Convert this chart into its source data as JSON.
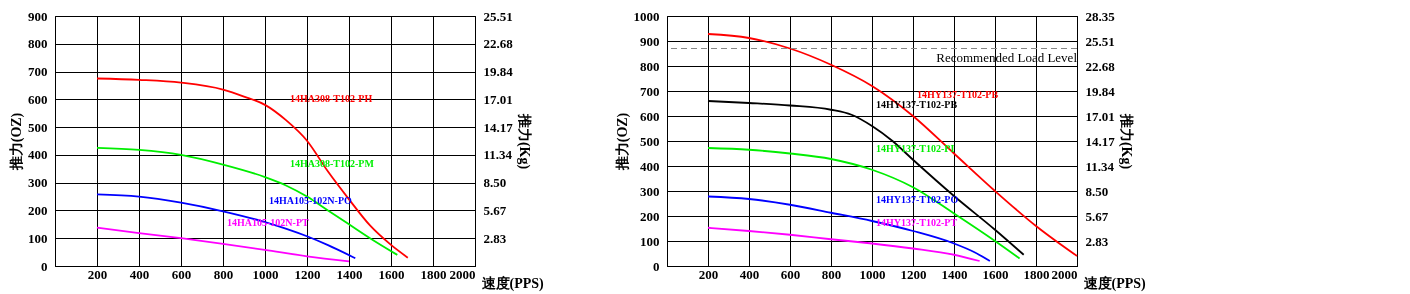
{
  "chart_data": [
    {
      "type": "line",
      "xlabel": "速度(PPS)",
      "ylabel": "推力(OZ)",
      "y2label": "推力(Kg)",
      "xlim": [
        0,
        2000
      ],
      "xticks": [
        200,
        400,
        600,
        800,
        1000,
        1200,
        1400,
        1600,
        1800,
        2000
      ],
      "ylim": [
        0,
        900
      ],
      "yticks": [
        0,
        100,
        200,
        300,
        400,
        500,
        600,
        700,
        800,
        900
      ],
      "y2lim": [
        0,
        25.51
      ],
      "y2ticks": [
        2.83,
        5.67,
        {
          "value": 8.5,
          "label": "8.50"
        },
        11.34,
        14.17,
        17.01,
        19.84,
        22.68,
        25.51
      ],
      "grid": true,
      "line_style": "solid",
      "series": [
        {
          "name": "14HA308-T102-PH",
          "color": "#ff0000",
          "x": [
            200,
            400,
            600,
            800,
            900,
            1000,
            1100,
            1200,
            1300,
            1400,
            1500,
            1600,
            1680
          ],
          "values": [
            675,
            670,
            660,
            635,
            610,
            580,
            525,
            451,
            340,
            240,
            146,
            76,
            30
          ]
        },
        {
          "name": "14HA308-T102-PM",
          "color": "#00ee00",
          "x": [
            200,
            400,
            600,
            800,
            1000,
            1100,
            1200,
            1300,
            1400,
            1500,
            1630
          ],
          "values": [
            425,
            418,
            400,
            365,
            320,
            290,
            250,
            200,
            150,
            100,
            40
          ]
        },
        {
          "name": "14HA105-102N-PO",
          "color": "#0000ff",
          "x": [
            200,
            400,
            600,
            800,
            1000,
            1200,
            1300,
            1430
          ],
          "values": [
            258,
            250,
            228,
            197,
            158,
            107,
            75,
            28
          ]
        },
        {
          "name": "14HA105-102N-PT",
          "color": "#ff00ff",
          "x": [
            200,
            400,
            600,
            800,
            1000,
            1200,
            1400
          ],
          "values": [
            138,
            118,
            100,
            80,
            58,
            35,
            17
          ]
        }
      ]
    },
    {
      "type": "line",
      "xlabel": "速度(PPS)",
      "ylabel": "推力(OZ)",
      "y2label": "推力(Kg)",
      "xlim": [
        0,
        2000
      ],
      "xticks": [
        200,
        400,
        600,
        800,
        1000,
        1200,
        1400,
        1600,
        1800,
        2000
      ],
      "ylim": [
        0,
        1000
      ],
      "yticks": [
        0,
        100,
        200,
        300,
        400,
        500,
        600,
        700,
        800,
        900,
        1000
      ],
      "y2lim": [
        0,
        28.35
      ],
      "y2ticks": [
        2.83,
        5.67,
        {
          "value": 8.5,
          "label": "8.50"
        },
        11.34,
        14.17,
        17.01,
        19.84,
        22.68,
        25.51,
        28.35
      ],
      "grid": true,
      "line_style": "solid",
      "ref_lines": [
        {
          "axis": "y",
          "value": 870,
          "label": "Recommended Load Level",
          "color": "#888888",
          "line_style": "dashed"
        }
      ],
      "series": [
        {
          "name": "14HY137-T102-PB",
          "color": "#ff0000",
          "x": [
            200,
            400,
            600,
            800,
            1000,
            1200,
            1400,
            1600,
            1800,
            2000
          ],
          "values": [
            928,
            912,
            870,
            805,
            720,
            600,
            450,
            300,
            160,
            40
          ]
        },
        {
          "name": "14HY137-T102-PB",
          "color": "#000000",
          "x": [
            200,
            400,
            600,
            800,
            900,
            1000,
            1100,
            1200,
            1400,
            1600,
            1740
          ],
          "values": [
            660,
            652,
            642,
            625,
            605,
            560,
            500,
            425,
            280,
            145,
            45
          ]
        },
        {
          "name": "14HY137-T102-PI",
          "color": "#00ee00",
          "x": [
            200,
            400,
            600,
            800,
            1000,
            1200,
            1400,
            1600,
            1720
          ],
          "values": [
            472,
            465,
            450,
            428,
            385,
            315,
            210,
            100,
            30
          ]
        },
        {
          "name": "14HY137-T102-PO",
          "color": "#0000ff",
          "x": [
            200,
            400,
            600,
            800,
            1000,
            1200,
            1400,
            1500,
            1575
          ],
          "values": [
            278,
            268,
            245,
            213,
            180,
            140,
            90,
            55,
            20
          ]
        },
        {
          "name": "14HY137-T102-PT",
          "color": "#ff00ff",
          "x": [
            200,
            400,
            600,
            800,
            1000,
            1200,
            1400,
            1525
          ],
          "values": [
            153,
            140,
            125,
            107,
            90,
            70,
            45,
            20
          ]
        }
      ]
    }
  ]
}
